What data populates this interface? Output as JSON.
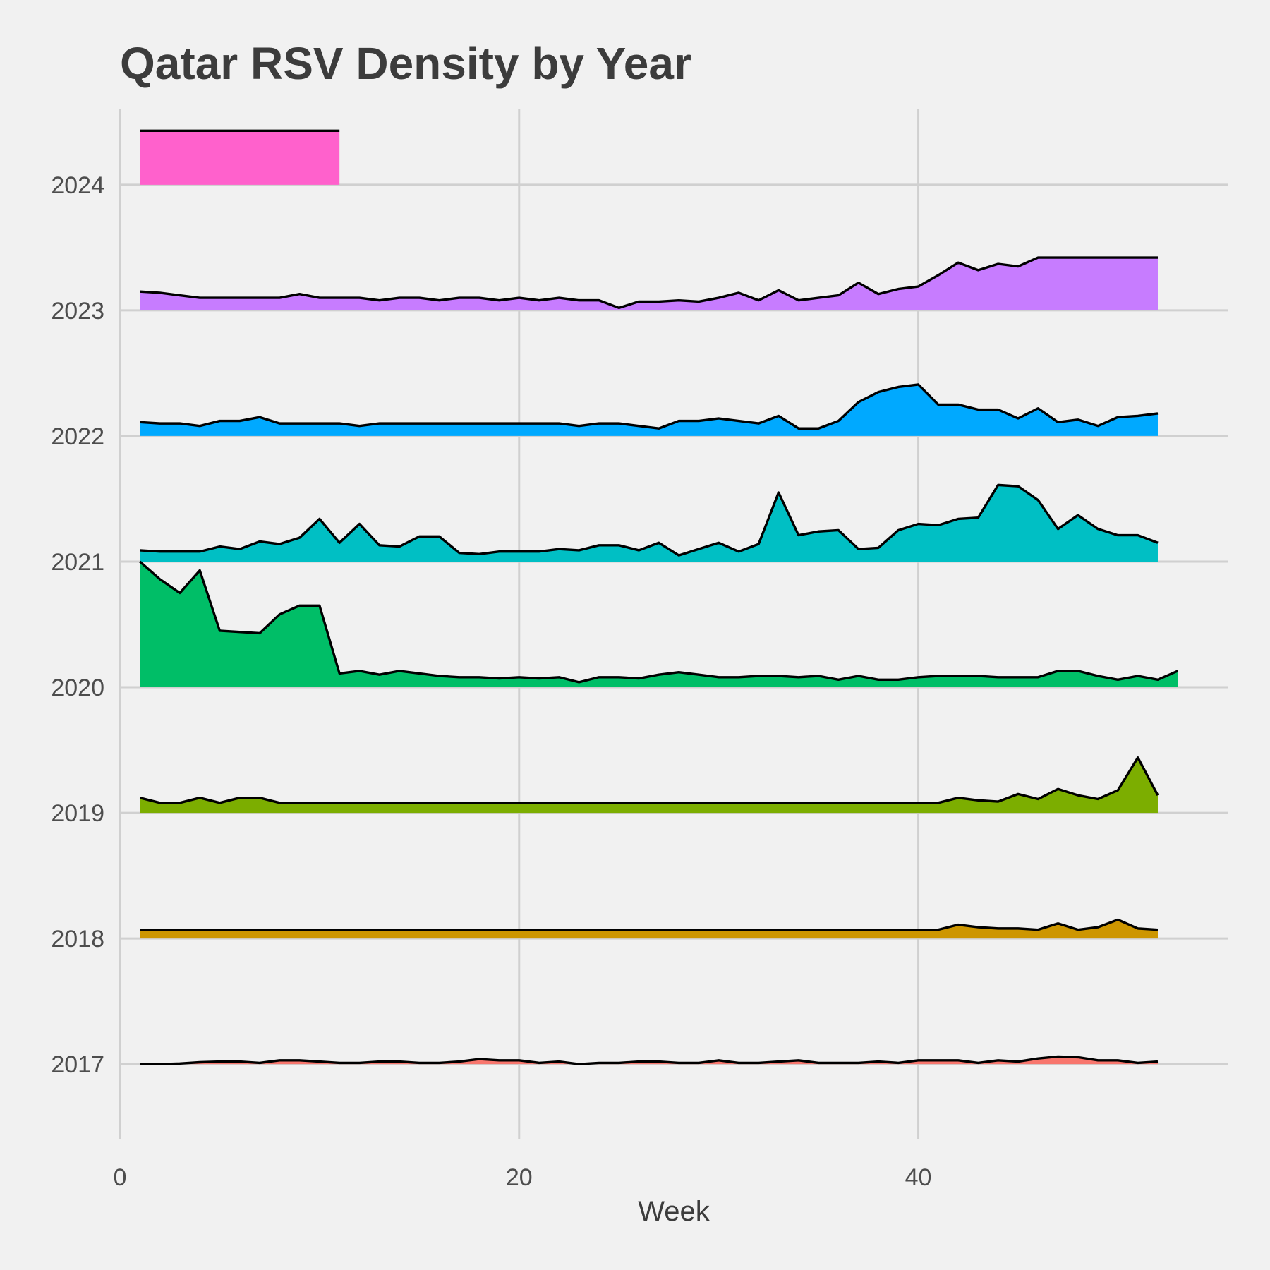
{
  "chart_data": {
    "type": "area",
    "subtype": "ridgeline",
    "title": "Qatar RSV Density by Year",
    "xlabel": "Week",
    "ylabel": "",
    "xlim": [
      0,
      55.5
    ],
    "ylim": [
      2016.4,
      2024.6
    ],
    "x_ticks": [
      0,
      20,
      40
    ],
    "y_ticks": [
      2017,
      2018,
      2019,
      2020,
      2021,
      2022,
      2023,
      2024
    ],
    "grid": true,
    "legend": "none",
    "series": [
      {
        "year": 2017,
        "color": "#F8766D",
        "values": [
          0.0,
          0.0,
          0.005,
          0.015,
          0.02,
          0.02,
          0.01,
          0.03,
          0.03,
          0.02,
          0.01,
          0.01,
          0.02,
          0.02,
          0.01,
          0.01,
          0.02,
          0.04,
          0.03,
          0.03,
          0.01,
          0.02,
          0.0,
          0.01,
          0.01,
          0.02,
          0.02,
          0.01,
          0.01,
          0.03,
          0.01,
          0.01,
          0.02,
          0.03,
          0.01,
          0.01,
          0.01,
          0.02,
          0.01,
          0.03,
          0.03,
          0.03,
          0.01,
          0.03,
          0.02,
          0.045,
          0.06,
          0.055,
          0.03,
          0.03,
          0.01,
          0.02
        ]
      },
      {
        "year": 2018,
        "color": "#CD9600",
        "values": [
          0.07,
          0.07,
          0.07,
          0.07,
          0.07,
          0.07,
          0.07,
          0.07,
          0.07,
          0.07,
          0.07,
          0.07,
          0.07,
          0.07,
          0.07,
          0.07,
          0.07,
          0.07,
          0.07,
          0.07,
          0.07,
          0.07,
          0.07,
          0.07,
          0.07,
          0.07,
          0.07,
          0.07,
          0.07,
          0.07,
          0.07,
          0.07,
          0.07,
          0.07,
          0.07,
          0.07,
          0.07,
          0.07,
          0.07,
          0.07,
          0.07,
          0.11,
          0.09,
          0.08,
          0.08,
          0.07,
          0.12,
          0.07,
          0.09,
          0.15,
          0.08,
          0.07
        ]
      },
      {
        "year": 2019,
        "color": "#7CAE00",
        "values": [
          0.12,
          0.08,
          0.08,
          0.12,
          0.08,
          0.12,
          0.12,
          0.08,
          0.08,
          0.08,
          0.08,
          0.08,
          0.08,
          0.08,
          0.08,
          0.08,
          0.08,
          0.08,
          0.08,
          0.08,
          0.08,
          0.08,
          0.08,
          0.08,
          0.08,
          0.08,
          0.08,
          0.08,
          0.08,
          0.08,
          0.08,
          0.08,
          0.08,
          0.08,
          0.08,
          0.08,
          0.08,
          0.08,
          0.08,
          0.08,
          0.08,
          0.12,
          0.1,
          0.09,
          0.15,
          0.11,
          0.19,
          0.14,
          0.11,
          0.18,
          0.44,
          0.14
        ]
      },
      {
        "year": 2020,
        "color": "#00BE67",
        "values": [
          1.0,
          0.86,
          0.75,
          0.93,
          0.45,
          0.44,
          0.43,
          0.58,
          0.65,
          0.65,
          0.11,
          0.13,
          0.1,
          0.13,
          0.11,
          0.09,
          0.08,
          0.08,
          0.07,
          0.08,
          0.07,
          0.08,
          0.04,
          0.08,
          0.08,
          0.07,
          0.1,
          0.12,
          0.1,
          0.08,
          0.08,
          0.09,
          0.09,
          0.08,
          0.09,
          0.06,
          0.09,
          0.06,
          0.06,
          0.08,
          0.09,
          0.09,
          0.09,
          0.08,
          0.08,
          0.08,
          0.13,
          0.13,
          0.09,
          0.06,
          0.09,
          0.06,
          0.13
        ]
      },
      {
        "year": 2021,
        "color": "#00BFC4",
        "values": [
          0.09,
          0.08,
          0.08,
          0.08,
          0.12,
          0.1,
          0.16,
          0.14,
          0.19,
          0.34,
          0.15,
          0.3,
          0.13,
          0.12,
          0.2,
          0.2,
          0.07,
          0.06,
          0.08,
          0.08,
          0.08,
          0.1,
          0.09,
          0.13,
          0.13,
          0.09,
          0.15,
          0.05,
          0.1,
          0.15,
          0.08,
          0.14,
          0.55,
          0.21,
          0.24,
          0.25,
          0.1,
          0.11,
          0.25,
          0.3,
          0.29,
          0.34,
          0.35,
          0.61,
          0.6,
          0.49,
          0.26,
          0.37,
          0.26,
          0.21,
          0.21,
          0.15
        ]
      },
      {
        "year": 2022,
        "color": "#00A9FF",
        "values": [
          0.11,
          0.1,
          0.1,
          0.08,
          0.12,
          0.12,
          0.15,
          0.1,
          0.1,
          0.1,
          0.1,
          0.08,
          0.1,
          0.1,
          0.1,
          0.1,
          0.1,
          0.1,
          0.1,
          0.1,
          0.1,
          0.1,
          0.08,
          0.1,
          0.1,
          0.08,
          0.06,
          0.12,
          0.12,
          0.14,
          0.12,
          0.1,
          0.16,
          0.06,
          0.06,
          0.12,
          0.27,
          0.35,
          0.39,
          0.41,
          0.25,
          0.25,
          0.21,
          0.21,
          0.14,
          0.22,
          0.11,
          0.13,
          0.08,
          0.15,
          0.16,
          0.18
        ]
      },
      {
        "year": 2023,
        "color": "#C77CFF",
        "values": [
          0.15,
          0.14,
          0.12,
          0.1,
          0.1,
          0.1,
          0.1,
          0.1,
          0.13,
          0.1,
          0.1,
          0.1,
          0.08,
          0.1,
          0.1,
          0.08,
          0.1,
          0.1,
          0.08,
          0.1,
          0.08,
          0.1,
          0.08,
          0.08,
          0.02,
          0.07,
          0.07,
          0.08,
          0.07,
          0.1,
          0.14,
          0.08,
          0.16,
          0.08,
          0.1,
          0.12,
          0.22,
          0.13,
          0.17,
          0.19,
          0.28,
          0.38,
          0.32,
          0.37,
          0.35,
          0.42,
          0.42,
          0.42,
          0.42,
          0.42,
          0.42,
          0.42
        ]
      },
      {
        "year": 2024,
        "color": "#FF61CC",
        "values": [
          0.43,
          0.43,
          0.43,
          0.43,
          0.43,
          0.43,
          0.43,
          0.43,
          0.43,
          0.43,
          0.43
        ]
      }
    ]
  }
}
